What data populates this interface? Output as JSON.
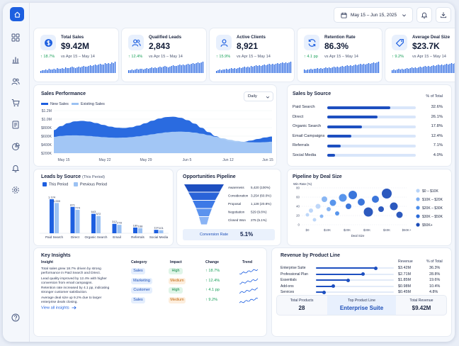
{
  "colors": {
    "accent": "#1d5fe0",
    "positive": "#1aa05a",
    "negative": "#1aa05a",
    "light_blue": "#9cc2f3"
  },
  "header": {
    "date_range": "May 15 – Jun 15, 2025",
    "icons": [
      "calendar-icon",
      "chevron-down-icon",
      "bell-icon",
      "download-icon"
    ]
  },
  "sidebar": {
    "icons": [
      "home-icon",
      "grid-icon",
      "bar-chart-icon",
      "users-icon",
      "cart-icon",
      "document-icon",
      "pie-chart-icon",
      "bell-icon",
      "settings-icon",
      "help-icon"
    ]
  },
  "kpis": [
    {
      "label": "Total Sales",
      "value": "$9.42M",
      "delta": "↑ 18.7%",
      "vs": "vs Apr 15 – May 14",
      "icon": "dollar-icon"
    },
    {
      "label": "Qualified Leads",
      "value": "2,843",
      "delta": "↑ 12.4%",
      "vs": "vs Apr 15 – May 14",
      "icon": "users-icon"
    },
    {
      "label": "Active Clients",
      "value": "8,921",
      "delta": "↑ 15.9%",
      "vs": "vs Apr 15 – May 14",
      "icon": "user-icon"
    },
    {
      "label": "Retention Rate",
      "value": "86.3%",
      "delta": "↑ 4.1 pp",
      "vs": "vs Apr 15 – May 14",
      "icon": "refresh-icon"
    },
    {
      "label": "Average Deal Size",
      "value": "$23.7K",
      "delta": "↑ 9.2%",
      "vs": "vs Apr 15 – May 14",
      "icon": "tag-icon"
    }
  ],
  "sales_performance": {
    "title": "Sales Performance",
    "dropdown": "Daily",
    "legend": [
      "New Sales",
      "Existing Sales"
    ],
    "y_ticks": [
      "$1.2M",
      "$1.0M",
      "$800K",
      "$600K",
      "$400K",
      "$200K"
    ],
    "x_ticks": [
      "May 15",
      "May 22",
      "May 29",
      "Jun 5",
      "Jun 12",
      "Jun 15"
    ]
  },
  "sales_by_source": {
    "title": "Sales by Source",
    "pct_header": "% of Total",
    "rows": [
      {
        "label": "Paid Search",
        "value": "32.6%",
        "pct": 32.6
      },
      {
        "label": "Direct",
        "value": "26.1%",
        "pct": 26.1
      },
      {
        "label": "Organic Search",
        "value": "17.8%",
        "pct": 17.8
      },
      {
        "label": "Email Campaigns",
        "value": "12.4%",
        "pct": 12.4
      },
      {
        "label": "Referrals",
        "value": "7.1%",
        "pct": 7.1
      },
      {
        "label": "Social Media",
        "value": "4.0%",
        "pct": 4.0
      }
    ]
  },
  "leads_by_source": {
    "title": "Leads by Source",
    "subtitle": "(This Period)",
    "legend": [
      "This Period",
      "Previous Period"
    ],
    "categories": [
      "Paid Search",
      "Direct",
      "Organic Search",
      "Email",
      "Referrals",
      "Social Media"
    ],
    "this": [
      1124,
      871,
      643,
      312,
      189,
      114
    ],
    "prev": [
      1000,
      774,
      572,
      278,
      168,
      101
    ],
    "this_labels": [
      "1,124",
      "871",
      "643",
      "312",
      "189",
      "114"
    ],
    "prev_labels": [
      "1,000",
      "774",
      "572",
      "278",
      "168",
      "101"
    ]
  },
  "funnel": {
    "title": "Opportunities Pipeline",
    "stages": [
      {
        "label": "Awareness",
        "value": "5,420 (100%)"
      },
      {
        "label": "Consideration",
        "value": "3,254 (60.0%)"
      },
      {
        "label": "Proposal",
        "value": "1,128 (20.8%)"
      },
      {
        "label": "Negotiation",
        "value": "529 (9.8%)"
      },
      {
        "label": "Closed Won",
        "value": "275 (5.1%)"
      }
    ],
    "conversion_label": "Conversion Rate",
    "conversion_value": "5.1%"
  },
  "pipeline_by_deal": {
    "title": "Pipeline by Deal Size",
    "ylabel": "Win Rate (%)",
    "xlabel": "Deal Size",
    "y_ticks": [
      "80",
      "60",
      "40",
      "20",
      "0"
    ],
    "x_ticks": [
      "$0",
      "$10K",
      "$20K",
      "$30K",
      "$40K",
      "$50K+"
    ],
    "legend": [
      "$0 – $10K",
      "$10K – $20K",
      "$20K – $30K",
      "$30K – $50K",
      "$50K+"
    ]
  },
  "insights": {
    "title": "Key Insights",
    "headers": [
      "Insight",
      "Category",
      "Impact",
      "Change",
      "Trend"
    ],
    "rows": [
      {
        "text1": "Total sales grew 18.7% driven by strong",
        "text2": "performance in Paid Search and Direct.",
        "category": "Sales",
        "impact": "High",
        "change": "↑ 18.7%"
      },
      {
        "text1": "Lead quality improved by 12.4% with higher",
        "text2": "conversion from email campaigns.",
        "category": "Marketing",
        "impact": "Medium",
        "change": "↑ 12.4%"
      },
      {
        "text1": "Retention rate increased by 4.1 pp, indicating",
        "text2": "stronger customer satisfaction.",
        "category": "Customer",
        "impact": "High",
        "change": "↑ 4.1 pp"
      },
      {
        "text1": "Average deal size up 9.2% due to larger",
        "text2": "enterprise deals closing.",
        "category": "Sales",
        "impact": "Medium",
        "change": "↑ 9.2%"
      }
    ],
    "link": "View all insights"
  },
  "revenue": {
    "title": "Revenue by Product Line",
    "headers": [
      "Revenue",
      "% of Total"
    ],
    "rows": [
      {
        "label": "Enterprise Suite",
        "revenue": "$3.42M",
        "pct": "36.3%",
        "share": 36.3
      },
      {
        "label": "Professional Plan",
        "revenue": "$2.71M",
        "pct": "28.8%",
        "share": 28.8
      },
      {
        "label": "Essentials",
        "revenue": "$1.85M",
        "pct": "19.6%",
        "share": 19.6
      },
      {
        "label": "Add-ons",
        "revenue": "$0.98M",
        "pct": "10.4%",
        "share": 10.4
      },
      {
        "label": "Services",
        "revenue": "$0.45M",
        "pct": "4.8%",
        "share": 4.8
      }
    ],
    "total_products_label": "Total Products",
    "total_products": "28",
    "top_line_label": "Top Product Line",
    "top_line": "Enterprise Suite",
    "total_revenue_label": "Total Revenue",
    "total_revenue": "$9.42M"
  }
}
